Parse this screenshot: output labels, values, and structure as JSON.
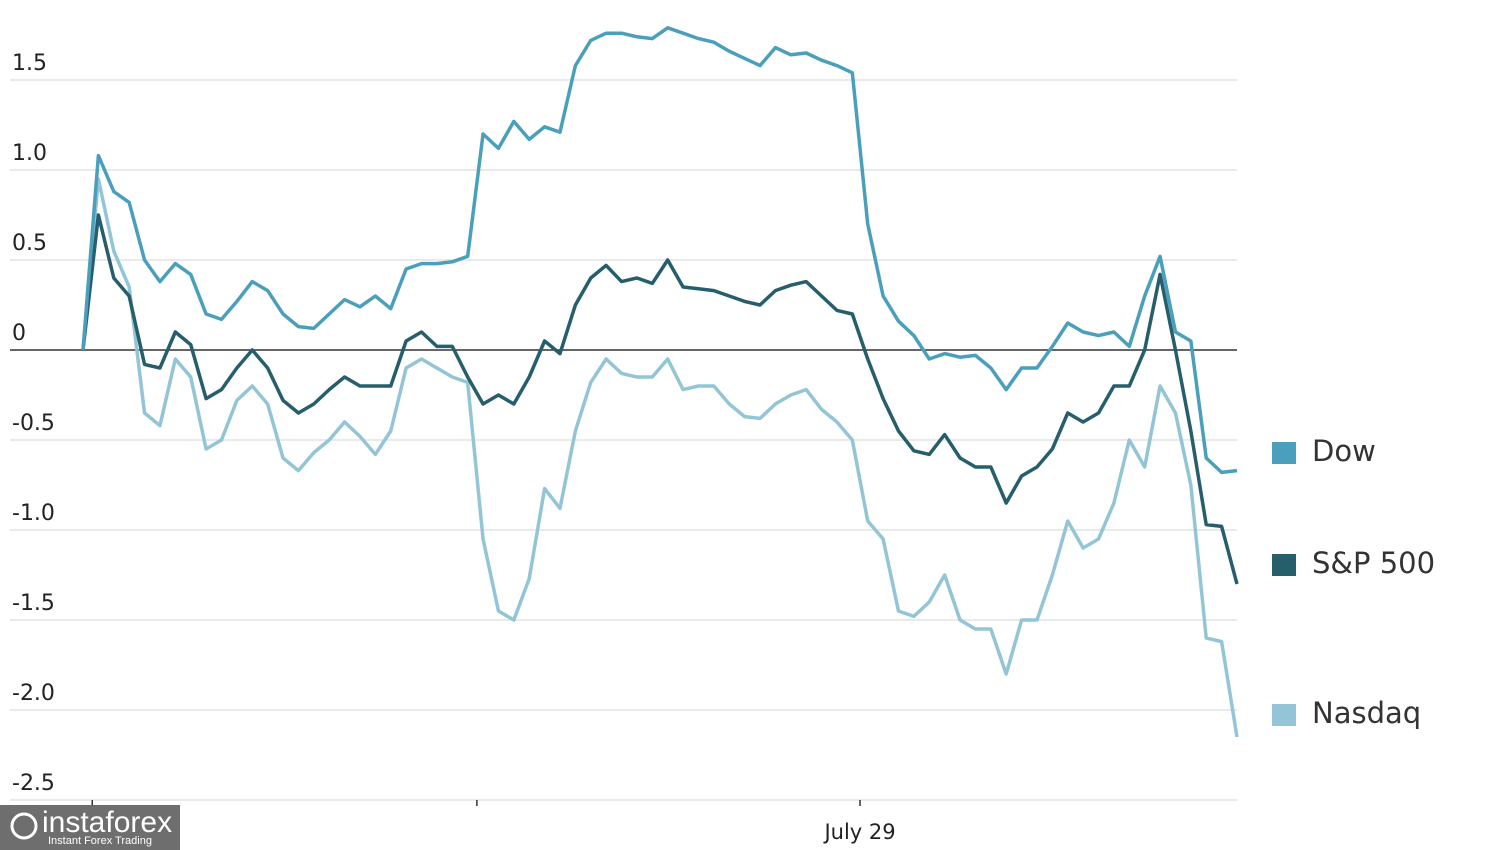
{
  "chart_data": {
    "type": "line",
    "ylim": [
      -2.5,
      1.9
    ],
    "yticks": [
      1.5,
      {
        "value": 1,
        "label": "1.0"
      },
      0.5,
      0,
      -0.5,
      {
        "value": -1,
        "label": "-1.0"
      },
      -1.5,
      {
        "value": -2,
        "label": "-2.0"
      },
      -2.5
    ],
    "xlim": [
      0,
      75
    ],
    "xticks": [
      0.6,
      25.6,
      {
        "value": 50.5,
        "label": "July 29"
      }
    ],
    "grid": true,
    "legend": "right",
    "series": [
      {
        "name": "Dow",
        "color": "#4a9fbc",
        "values": [
          0,
          1.08,
          0.88,
          0.82,
          0.5,
          0.38,
          0.48,
          0.42,
          0.2,
          0.17,
          0.27,
          0.38,
          0.33,
          0.2,
          0.13,
          0.12,
          0.2,
          0.28,
          0.24,
          0.3,
          0.23,
          0.45,
          0.48,
          0.48,
          0.49,
          0.52,
          1.2,
          1.12,
          1.27,
          1.17,
          1.24,
          1.21,
          1.58,
          1.72,
          1.76,
          1.76,
          1.74,
          1.73,
          1.79,
          1.76,
          1.73,
          1.71,
          1.66,
          1.62,
          1.58,
          1.68,
          1.64,
          1.65,
          1.61,
          1.58,
          1.54,
          0.7,
          0.3,
          0.16,
          0.08,
          -0.05,
          -0.02,
          -0.04,
          -0.03,
          -0.1,
          -0.22,
          -0.1,
          -0.1,
          0.02,
          0.15,
          0.1,
          0.08,
          0.1,
          0.02,
          0.3,
          0.52,
          0.1,
          0.05,
          -0.6,
          -0.68,
          -0.67
        ]
      },
      {
        "name": "S&P 500",
        "color": "#265e6c",
        "values": [
          0,
          0.75,
          0.4,
          0.3,
          -0.08,
          -0.1,
          0.1,
          0.03,
          -0.27,
          -0.22,
          -0.1,
          0.0,
          -0.1,
          -0.28,
          -0.35,
          -0.3,
          -0.22,
          -0.15,
          -0.2,
          -0.2,
          -0.2,
          0.05,
          0.1,
          0.02,
          0.02,
          -0.15,
          -0.3,
          -0.25,
          -0.3,
          -0.15,
          0.05,
          -0.02,
          0.25,
          0.4,
          0.47,
          0.38,
          0.4,
          0.37,
          0.5,
          0.35,
          0.34,
          0.33,
          0.3,
          0.27,
          0.25,
          0.33,
          0.36,
          0.38,
          0.3,
          0.22,
          0.2,
          -0.05,
          -0.27,
          -0.45,
          -0.56,
          -0.58,
          -0.47,
          -0.6,
          -0.65,
          -0.65,
          -0.85,
          -0.7,
          -0.65,
          -0.55,
          -0.35,
          -0.4,
          -0.35,
          -0.2,
          -0.2,
          0.0,
          0.42,
          0.0,
          -0.45,
          -0.97,
          -0.98,
          -1.3
        ]
      },
      {
        "name": "Nasdaq",
        "color": "#93c5d6",
        "values": [
          0,
          0.95,
          0.55,
          0.35,
          -0.35,
          -0.42,
          -0.05,
          -0.15,
          -0.55,
          -0.5,
          -0.28,
          -0.2,
          -0.3,
          -0.6,
          -0.67,
          -0.57,
          -0.5,
          -0.4,
          -0.48,
          -0.58,
          -0.45,
          -0.1,
          -0.05,
          -0.1,
          -0.15,
          -0.18,
          -1.05,
          -1.45,
          -1.5,
          -1.27,
          -0.77,
          -0.88,
          -0.45,
          -0.18,
          -0.05,
          -0.13,
          -0.15,
          -0.15,
          -0.05,
          -0.22,
          -0.2,
          -0.2,
          -0.3,
          -0.37,
          -0.38,
          -0.3,
          -0.25,
          -0.22,
          -0.33,
          -0.4,
          -0.5,
          -0.95,
          -1.05,
          -1.45,
          -1.48,
          -1.4,
          -1.25,
          -1.5,
          -1.55,
          -1.55,
          -1.8,
          -1.5,
          -1.5,
          -1.25,
          -0.95,
          -1.1,
          -1.05,
          -0.85,
          -0.5,
          -0.65,
          -0.2,
          -0.35,
          -0.75,
          -1.6,
          -1.62,
          -2.15
        ]
      }
    ]
  },
  "watermark": {
    "brand": "instaforex",
    "tagline": "Instant Forex Trading"
  }
}
